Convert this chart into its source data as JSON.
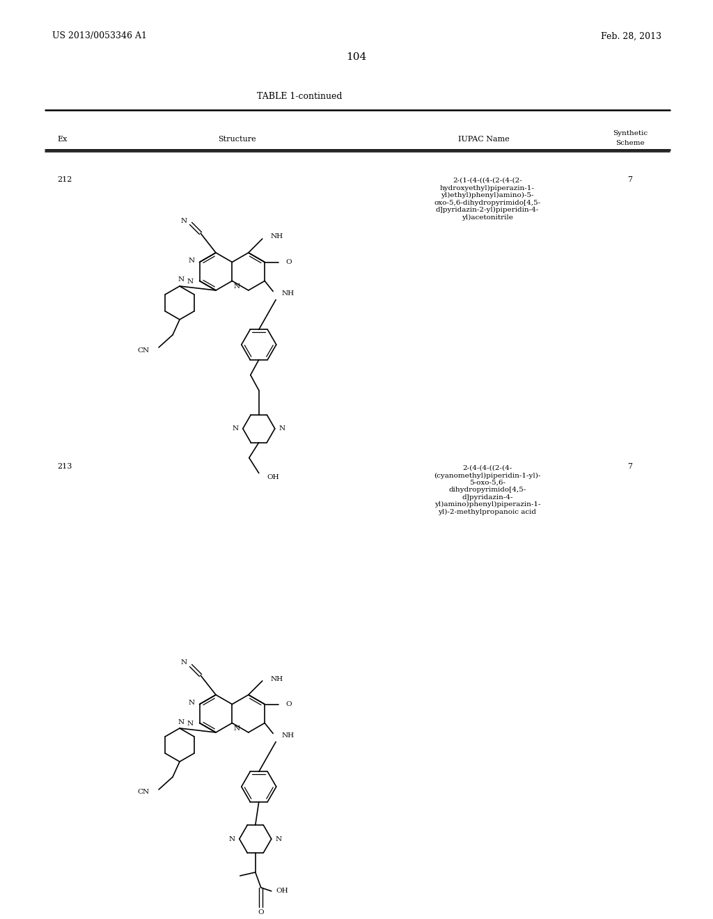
{
  "page_number": "104",
  "patent_number": "US 2013/0053346 A1",
  "patent_date": "Feb. 28, 2013",
  "table_title": "TABLE 1-continued",
  "background_color": "#ffffff",
  "entries": [
    {
      "ex": "212",
      "iupac": "2-(1-(4-((4-(2-(4-(2-\nhydroxyethyl)piperazin-1-\nyl)ethyl)phenyl)amino)-5-\noxo-5,6-dihydropyrimido[4,5-\nd]pyridazin-2-yl)piperidin-4-\nyl)acetonitrile",
      "scheme": "7"
    },
    {
      "ex": "213",
      "iupac": "2-(4-(4-((2-(4-\n(cyanomethyl)piperidin-1-yl)-\n5-oxo-5,6-\ndihydropyrimido[4,5-\nd]pyridazin-4-\nyl)amino)phenyl)piperazin-1-\nyl)-2-methylpropanoic acid",
      "scheme": "7"
    }
  ]
}
